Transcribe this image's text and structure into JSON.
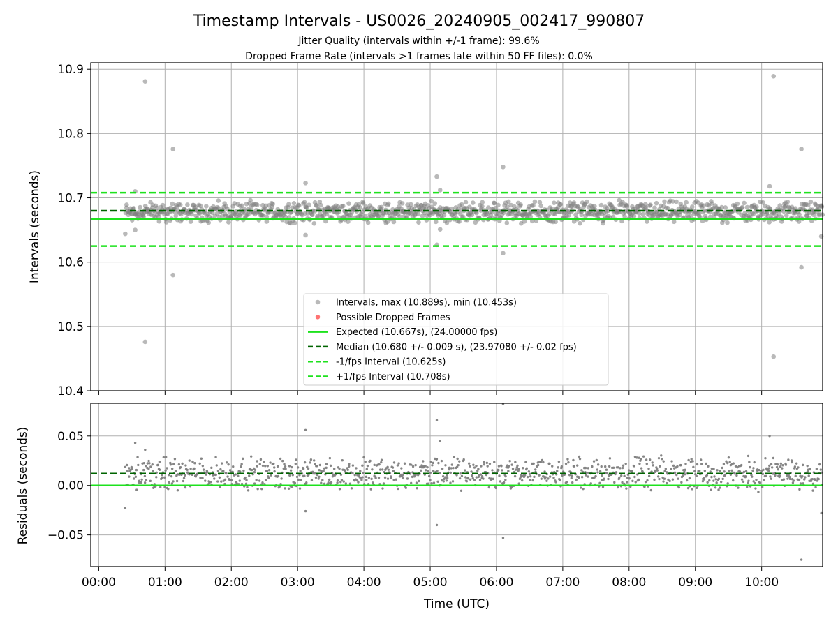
{
  "figure": {
    "title": "Timestamp Intervals - US0026_20240905_002417_990807",
    "subtitle_1": "Jitter Quality (intervals within +/-1 frame): 99.6%",
    "subtitle_2": "Dropped Frame Rate (intervals >1 frames late within 50 FF files): 0.0%"
  },
  "colors": {
    "points": "#808080",
    "dropped": "#ff0000",
    "expected": "#1de21d",
    "median": "#006400",
    "bounds": "#1de21d",
    "grid": "#b0b0b0"
  },
  "chart_data": [
    {
      "type": "scatter",
      "panel": "intervals",
      "ylabel": "Intervals (seconds)",
      "ylim": [
        10.4,
        10.91
      ],
      "yticks": [
        "10.4",
        "10.5",
        "10.6",
        "10.7",
        "10.8",
        "10.9"
      ],
      "xlim_hours": [
        -0.12,
        10.92
      ],
      "grid": true,
      "legend_position": "lower center",
      "lines": {
        "expected": 10.667,
        "median": 10.68,
        "lower": 10.625,
        "upper": 10.708
      },
      "band": {
        "start_hour": 0.4,
        "end_hour": 10.92,
        "center": 10.678,
        "spread": 0.019,
        "count": 1100
      },
      "outliers": [
        {
          "x": 0.4,
          "y": 10.644
        },
        {
          "x": 0.55,
          "y": 10.71
        },
        {
          "x": 0.55,
          "y": 10.65
        },
        {
          "x": 0.7,
          "y": 10.881
        },
        {
          "x": 0.7,
          "y": 10.476
        },
        {
          "x": 1.12,
          "y": 10.776
        },
        {
          "x": 1.12,
          "y": 10.58
        },
        {
          "x": 3.12,
          "y": 10.723
        },
        {
          "x": 3.12,
          "y": 10.642
        },
        {
          "x": 5.1,
          "y": 10.733
        },
        {
          "x": 5.1,
          "y": 10.627
        },
        {
          "x": 5.15,
          "y": 10.712
        },
        {
          "x": 5.15,
          "y": 10.651
        },
        {
          "x": 6.1,
          "y": 10.748
        },
        {
          "x": 6.1,
          "y": 10.614
        },
        {
          "x": 10.12,
          "y": 10.718
        },
        {
          "x": 10.18,
          "y": 10.889
        },
        {
          "x": 10.18,
          "y": 10.453
        },
        {
          "x": 10.6,
          "y": 10.776
        },
        {
          "x": 10.6,
          "y": 10.592
        },
        {
          "x": 10.9,
          "y": 10.64
        }
      ],
      "legend": [
        {
          "kind": "marker",
          "color": "#808080",
          "label": "Intervals, max (10.889s), min (10.453s)"
        },
        {
          "kind": "marker",
          "color": "#ff0000",
          "label": "Possible Dropped Frames"
        },
        {
          "kind": "solid",
          "color": "#1de21d",
          "label": "Expected (10.667s), (24.00000 fps)"
        },
        {
          "kind": "dashed",
          "color": "#006400",
          "label": "Median (10.680 +/- 0.009 s), (23.97080 +/- 0.02 fps)"
        },
        {
          "kind": "dashed",
          "color": "#1de21d",
          "label": "-1/fps Interval (10.625s)"
        },
        {
          "kind": "dashed",
          "color": "#1de21d",
          "label": "+1/fps Interval (10.708s)"
        }
      ]
    },
    {
      "type": "scatter",
      "panel": "residuals",
      "xlabel": "Time (UTC)",
      "ylabel": "Residuals (seconds)",
      "ylim": [
        -0.082,
        0.083
      ],
      "yticks": [
        {
          "v": 0.05,
          "label": "0.05"
        },
        {
          "v": 0.0,
          "label": "0.00"
        },
        {
          "v": -0.05,
          "label": "−0.05"
        }
      ],
      "xlim_hours": [
        -0.12,
        10.92
      ],
      "xticks": [
        "00:00",
        "01:00",
        "02:00",
        "03:00",
        "04:00",
        "05:00",
        "06:00",
        "07:00",
        "08:00",
        "09:00",
        "10:00"
      ],
      "grid": true,
      "lines": {
        "zero": 0.0,
        "median": 0.012
      },
      "band": {
        "start_hour": 0.4,
        "end_hour": 10.92,
        "center": 0.012,
        "spread": 0.019,
        "count": 1100
      },
      "outliers": [
        {
          "x": 0.4,
          "y": -0.023
        },
        {
          "x": 0.55,
          "y": 0.043
        },
        {
          "x": 0.7,
          "y": 0.036
        },
        {
          "x": 3.12,
          "y": 0.056
        },
        {
          "x": 3.12,
          "y": -0.026
        },
        {
          "x": 5.1,
          "y": 0.066
        },
        {
          "x": 5.1,
          "y": -0.04
        },
        {
          "x": 5.15,
          "y": 0.045
        },
        {
          "x": 6.1,
          "y": 0.082
        },
        {
          "x": 6.1,
          "y": -0.053
        },
        {
          "x": 10.12,
          "y": 0.05
        },
        {
          "x": 10.6,
          "y": -0.075
        },
        {
          "x": 10.9,
          "y": -0.028
        }
      ]
    }
  ]
}
